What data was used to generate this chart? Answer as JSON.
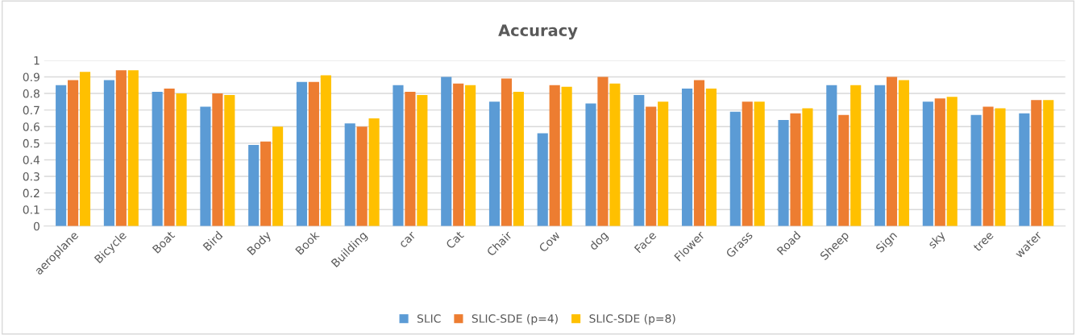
{
  "chart_data": {
    "type": "bar",
    "title": "Accuracy",
    "categories": [
      "aeroplane",
      "Bicycle",
      "Boat",
      "Bird",
      "Body",
      "Book",
      "Building",
      "car",
      "Cat",
      "Chair",
      "Cow",
      "dog",
      "Face",
      "Flower",
      "Grass",
      "Road",
      "Sheep",
      "Sign",
      "sky",
      "tree",
      "water"
    ],
    "series": [
      {
        "name": "SLIC",
        "color": "#5b9bd5",
        "values": [
          0.85,
          0.88,
          0.81,
          0.72,
          0.49,
          0.87,
          0.62,
          0.85,
          0.9,
          0.75,
          0.56,
          0.74,
          0.79,
          0.83,
          0.69,
          0.64,
          0.85,
          0.85,
          0.75,
          0.67,
          0.68
        ]
      },
      {
        "name": "SLIC-SDE (p=4)",
        "color": "#ed7d31",
        "values": [
          0.88,
          0.94,
          0.83,
          0.8,
          0.51,
          0.87,
          0.6,
          0.81,
          0.86,
          0.89,
          0.85,
          0.9,
          0.72,
          0.88,
          0.75,
          0.68,
          0.67,
          0.9,
          0.77,
          0.72,
          0.76
        ]
      },
      {
        "name": "SLIC-SDE (p=8)",
        "color": "#ffc000",
        "values": [
          0.93,
          0.94,
          0.8,
          0.79,
          0.6,
          0.91,
          0.65,
          0.79,
          0.85,
          0.81,
          0.84,
          0.86,
          0.75,
          0.83,
          0.75,
          0.71,
          0.85,
          0.88,
          0.78,
          0.71,
          0.76
        ]
      }
    ],
    "ylim": [
      0,
      1
    ],
    "yticks": [
      0,
      0.1,
      0.2,
      0.3,
      0.4,
      0.5,
      0.6,
      0.7,
      0.8,
      0.9,
      1
    ],
    "grid": "y",
    "legend": "bottom"
  }
}
